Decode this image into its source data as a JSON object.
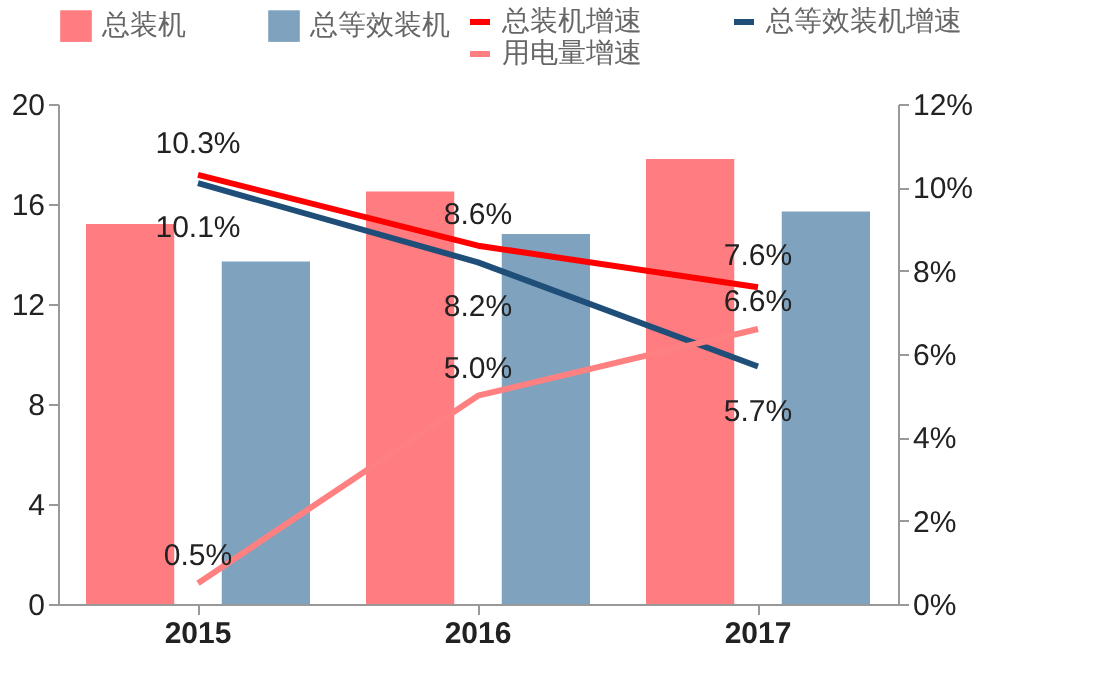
{
  "chart_data": {
    "type": "bar",
    "categories": [
      "2015",
      "2016",
      "2017"
    ],
    "series": [
      {
        "name": "总装机",
        "color": "#ff7c80",
        "values": [
          15.2,
          16.5,
          17.8
        ]
      },
      {
        "name": "总等效装机",
        "color": "#7fa3bf",
        "values": [
          13.7,
          14.8,
          15.7
        ]
      },
      {
        "name": "总装机增速",
        "type": "line",
        "axis": "y2",
        "color": "#ff0000",
        "values": [
          10.3,
          8.6,
          7.6
        ],
        "value_labels": [
          "10.3%",
          "8.6%",
          "7.6%"
        ]
      },
      {
        "name": "总等效装机增速",
        "type": "line",
        "axis": "y2",
        "color": "#1f4e79",
        "values": [
          10.1,
          8.2,
          5.7
        ],
        "value_labels": [
          "10.1%",
          "8.2%",
          "5.7%"
        ]
      },
      {
        "name": "用电量增速",
        "type": "line",
        "axis": "y2",
        "color": "#ff8080",
        "values": [
          0.5,
          5.0,
          6.6
        ],
        "value_labels": [
          "0.5%",
          "5.0%",
          "6.6%"
        ]
      }
    ],
    "ylim": [
      0,
      20
    ],
    "yticks": [
      0,
      4,
      8,
      12,
      16,
      20
    ],
    "y2lim": [
      0,
      12
    ],
    "y2ticks": [
      {
        "value": 0,
        "label": "0%"
      },
      {
        "value": 2,
        "label": "2%"
      },
      {
        "value": 4,
        "label": "4%"
      },
      {
        "value": 6,
        "label": "6%"
      },
      {
        "value": 8,
        "label": "8%"
      },
      {
        "value": 10,
        "label": "10%"
      },
      {
        "value": 12,
        "label": "12%"
      }
    ],
    "grid": false,
    "legend": "top"
  }
}
